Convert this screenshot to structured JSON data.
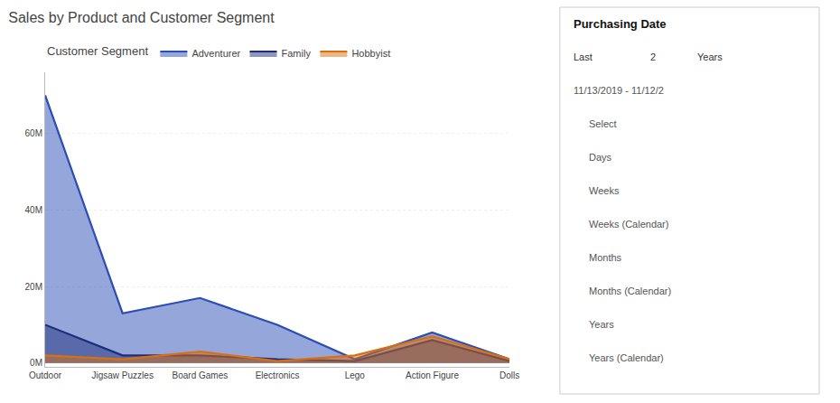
{
  "chart_data": {
    "type": "area",
    "title": "Sales by Product and Customer Segment",
    "legend_title": "Customer Segment",
    "categories": [
      "Outdoor",
      "Jigsaw Puzzles",
      "Board Games",
      "Electronics",
      "Lego",
      "Action Figure",
      "Dolls"
    ],
    "series": [
      {
        "name": "Adventurer",
        "color": "#2B4DB5",
        "values": [
          70,
          13,
          17,
          10,
          1,
          8,
          1
        ]
      },
      {
        "name": "Family",
        "color": "#1E2D7A",
        "values": [
          10,
          2,
          2,
          1,
          0.5,
          6,
          0.5
        ]
      },
      {
        "name": "Hobbyist",
        "color": "#D97010",
        "values": [
          2,
          1,
          3,
          0.5,
          2,
          7,
          1
        ]
      }
    ],
    "ylim": [
      -1,
      76
    ],
    "yticks": [
      {
        "value": 0,
        "label": "0M"
      },
      {
        "value": 20,
        "label": "20M"
      },
      {
        "value": 40,
        "label": "40M"
      },
      {
        "value": 60,
        "label": "60M"
      }
    ],
    "grid": true,
    "legend": "top left",
    "annotations": [
      "Purchasing Date",
      "Last",
      "2",
      "Years",
      "11/13/2019 - 11/12/2",
      "Select",
      "Days",
      "Weeks",
      "Weeks (Calendar)",
      "Months",
      "Months (Calendar)",
      "Years",
      "Years (Calendar)"
    ]
  }
}
